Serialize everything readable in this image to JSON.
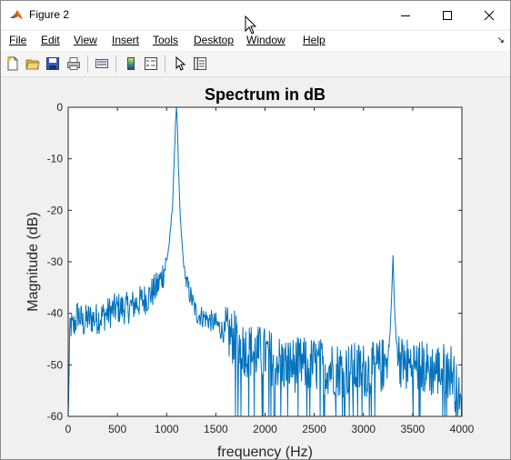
{
  "window": {
    "title": "Figure 2",
    "accent": "#0072bd"
  },
  "menu": [
    {
      "label": "File",
      "name": "menu-file"
    },
    {
      "label": "Edit",
      "name": "menu-edit"
    },
    {
      "label": "View",
      "name": "menu-view"
    },
    {
      "label": "Insert",
      "name": "menu-insert"
    },
    {
      "label": "Tools",
      "name": "menu-tools"
    },
    {
      "label": "Desktop",
      "name": "menu-desktop"
    },
    {
      "label": "Window",
      "name": "menu-window"
    },
    {
      "label": "Help",
      "name": "menu-help"
    }
  ],
  "toolbar": [
    "new-figure-icon",
    "open-file-icon",
    "save-icon",
    "print-icon",
    "link-plot-icon",
    "colorbar-icon",
    "legend-icon",
    "edit-plot-icon",
    "property-inspector-icon"
  ],
  "chart_data": {
    "type": "line",
    "title": "Spectrum in dB",
    "xlabel": "frequency (Hz)",
    "ylabel": "Magnitude (dB)",
    "xlim": [
      0,
      4000
    ],
    "ylim": [
      -60,
      0
    ],
    "xticks": [
      0,
      500,
      1000,
      1500,
      2000,
      2500,
      3000,
      3500,
      4000
    ],
    "yticks": [
      0,
      -10,
      -20,
      -30,
      -40,
      -50,
      -60
    ],
    "series": [
      {
        "color": "#0072bd",
        "peaks": [
          {
            "x": 1100,
            "y": 0
          },
          {
            "x": 3300,
            "y": -28.7
          }
        ],
        "x": [
          0,
          20,
          50,
          100,
          150,
          200,
          300,
          400,
          500,
          600,
          700,
          800,
          900,
          950,
          1000,
          1030,
          1060,
          1080,
          1090,
          1100,
          1110,
          1120,
          1140,
          1170,
          1200,
          1250,
          1300,
          1400,
          1500,
          1600,
          1700,
          1800,
          2000,
          2200,
          2500,
          2800,
          3000,
          3100,
          3200,
          3250,
          3270,
          3290,
          3300,
          3310,
          3330,
          3360,
          3400,
          3500,
          3700,
          3900,
          4000
        ],
        "y": [
          -60,
          -42,
          -43,
          -40,
          -42,
          -41,
          -41,
          -40,
          -39,
          -39,
          -38,
          -37,
          -35,
          -33,
          -30,
          -26,
          -19,
          -9,
          -3,
          0,
          -4,
          -12,
          -22,
          -30,
          -34,
          -37,
          -40,
          -41,
          -42,
          -44,
          -45,
          -47,
          -48,
          -50,
          -50,
          -51,
          -51,
          -51,
          -50,
          -48,
          -44,
          -35,
          -28.7,
          -36,
          -45,
          -48,
          -50,
          -50,
          -51,
          -51,
          -60
        ]
      }
    ]
  }
}
